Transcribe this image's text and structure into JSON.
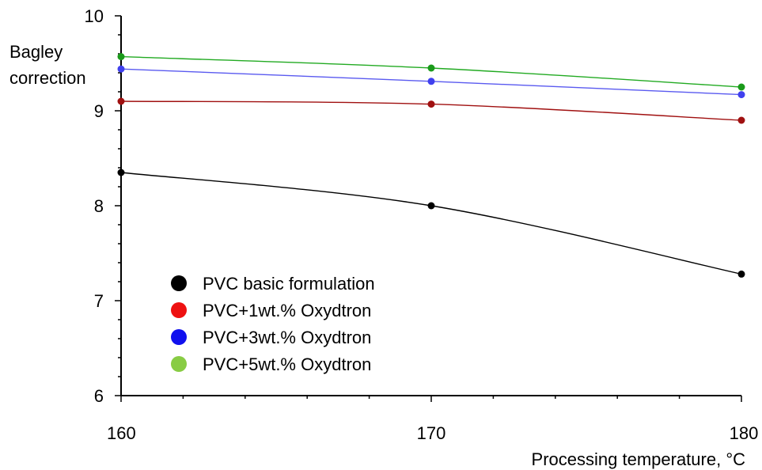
{
  "chart_data": {
    "type": "line",
    "xlabel": "Processing temperature, °C",
    "ylabel_lines": [
      "Bagley",
      "correction"
    ],
    "xlim": [
      160,
      180
    ],
    "ylim": [
      6,
      10
    ],
    "x_ticks": [
      160,
      170,
      180
    ],
    "y_ticks": [
      6,
      7,
      8,
      9,
      10
    ],
    "x": [
      160,
      170,
      180
    ],
    "grid": false,
    "legend_position": "bottom-left",
    "series": [
      {
        "name": "PVC basic formulation",
        "values": [
          8.35,
          8.0,
          7.28
        ],
        "line_color": "#000000",
        "marker_color": "#000000",
        "legend_color": "#000000"
      },
      {
        "name": "PVC+1wt.% Oxydtron",
        "values": [
          9.1,
          9.07,
          8.9
        ],
        "line_color": "#a01010",
        "marker_color": "#a01010",
        "legend_color": "#ee1111"
      },
      {
        "name": "PVC+3wt.% Oxydtron",
        "values": [
          9.44,
          9.31,
          9.17
        ],
        "line_color": "#5a5af0",
        "marker_color": "#4040ee",
        "legend_color": "#1010ee"
      },
      {
        "name": "PVC+5wt.% Oxydtron",
        "values": [
          9.57,
          9.45,
          9.25
        ],
        "line_color": "#22aa22",
        "marker_color": "#1a9a1a",
        "legend_color": "#88cc44"
      }
    ]
  }
}
